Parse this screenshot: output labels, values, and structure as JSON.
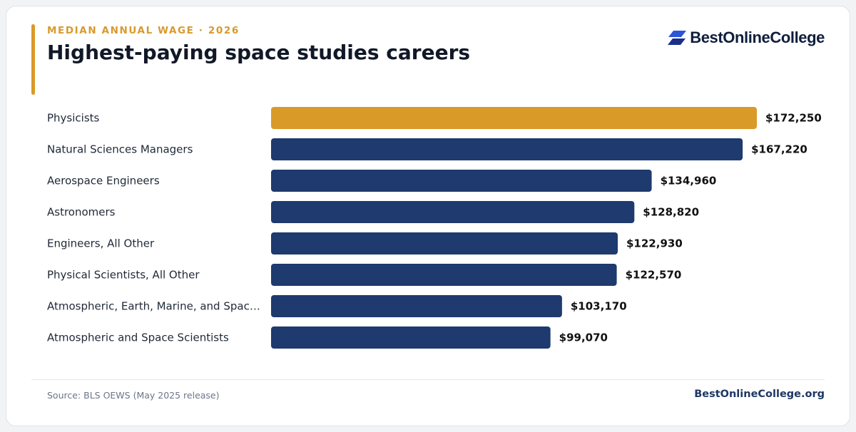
{
  "header": {
    "eyebrow": "MEDIAN ANNUAL WAGE · 2026",
    "title": "Highest-paying space studies careers"
  },
  "brand": {
    "logo_text": "BestOnlineCollege",
    "logo_icon": "stacked-parallelogram-logo-icon",
    "logo_color": "#2c55d8"
  },
  "footer": {
    "source": "Source: BLS OEWS (May 2025 release)",
    "site": "BestOnlineCollege.org"
  },
  "colors": {
    "highlight": "#da9a28",
    "bar": "#1e3a6e",
    "label": "#1f2937",
    "value": "#111111"
  },
  "chart_data": {
    "type": "bar",
    "orientation": "horizontal",
    "categories": [
      "Physicists",
      "Natural Sciences Managers",
      "Aerospace Engineers",
      "Astronomers",
      "Engineers, All Other",
      "Physical Scientists, All Other",
      "Atmospheric, Earth, Marine, and Spac…",
      "Atmospheric and Space Scientists"
    ],
    "values": [
      172250,
      167220,
      134960,
      128820,
      122930,
      122570,
      103170,
      99070
    ],
    "value_labels": [
      "$172,250",
      "$167,220",
      "$134,960",
      "$128,820",
      "$122,930",
      "$122,570",
      "$103,170",
      "$99,070"
    ],
    "highlight_index": 0,
    "xlim": [
      0,
      172250
    ],
    "grid": false,
    "legend": "none"
  }
}
